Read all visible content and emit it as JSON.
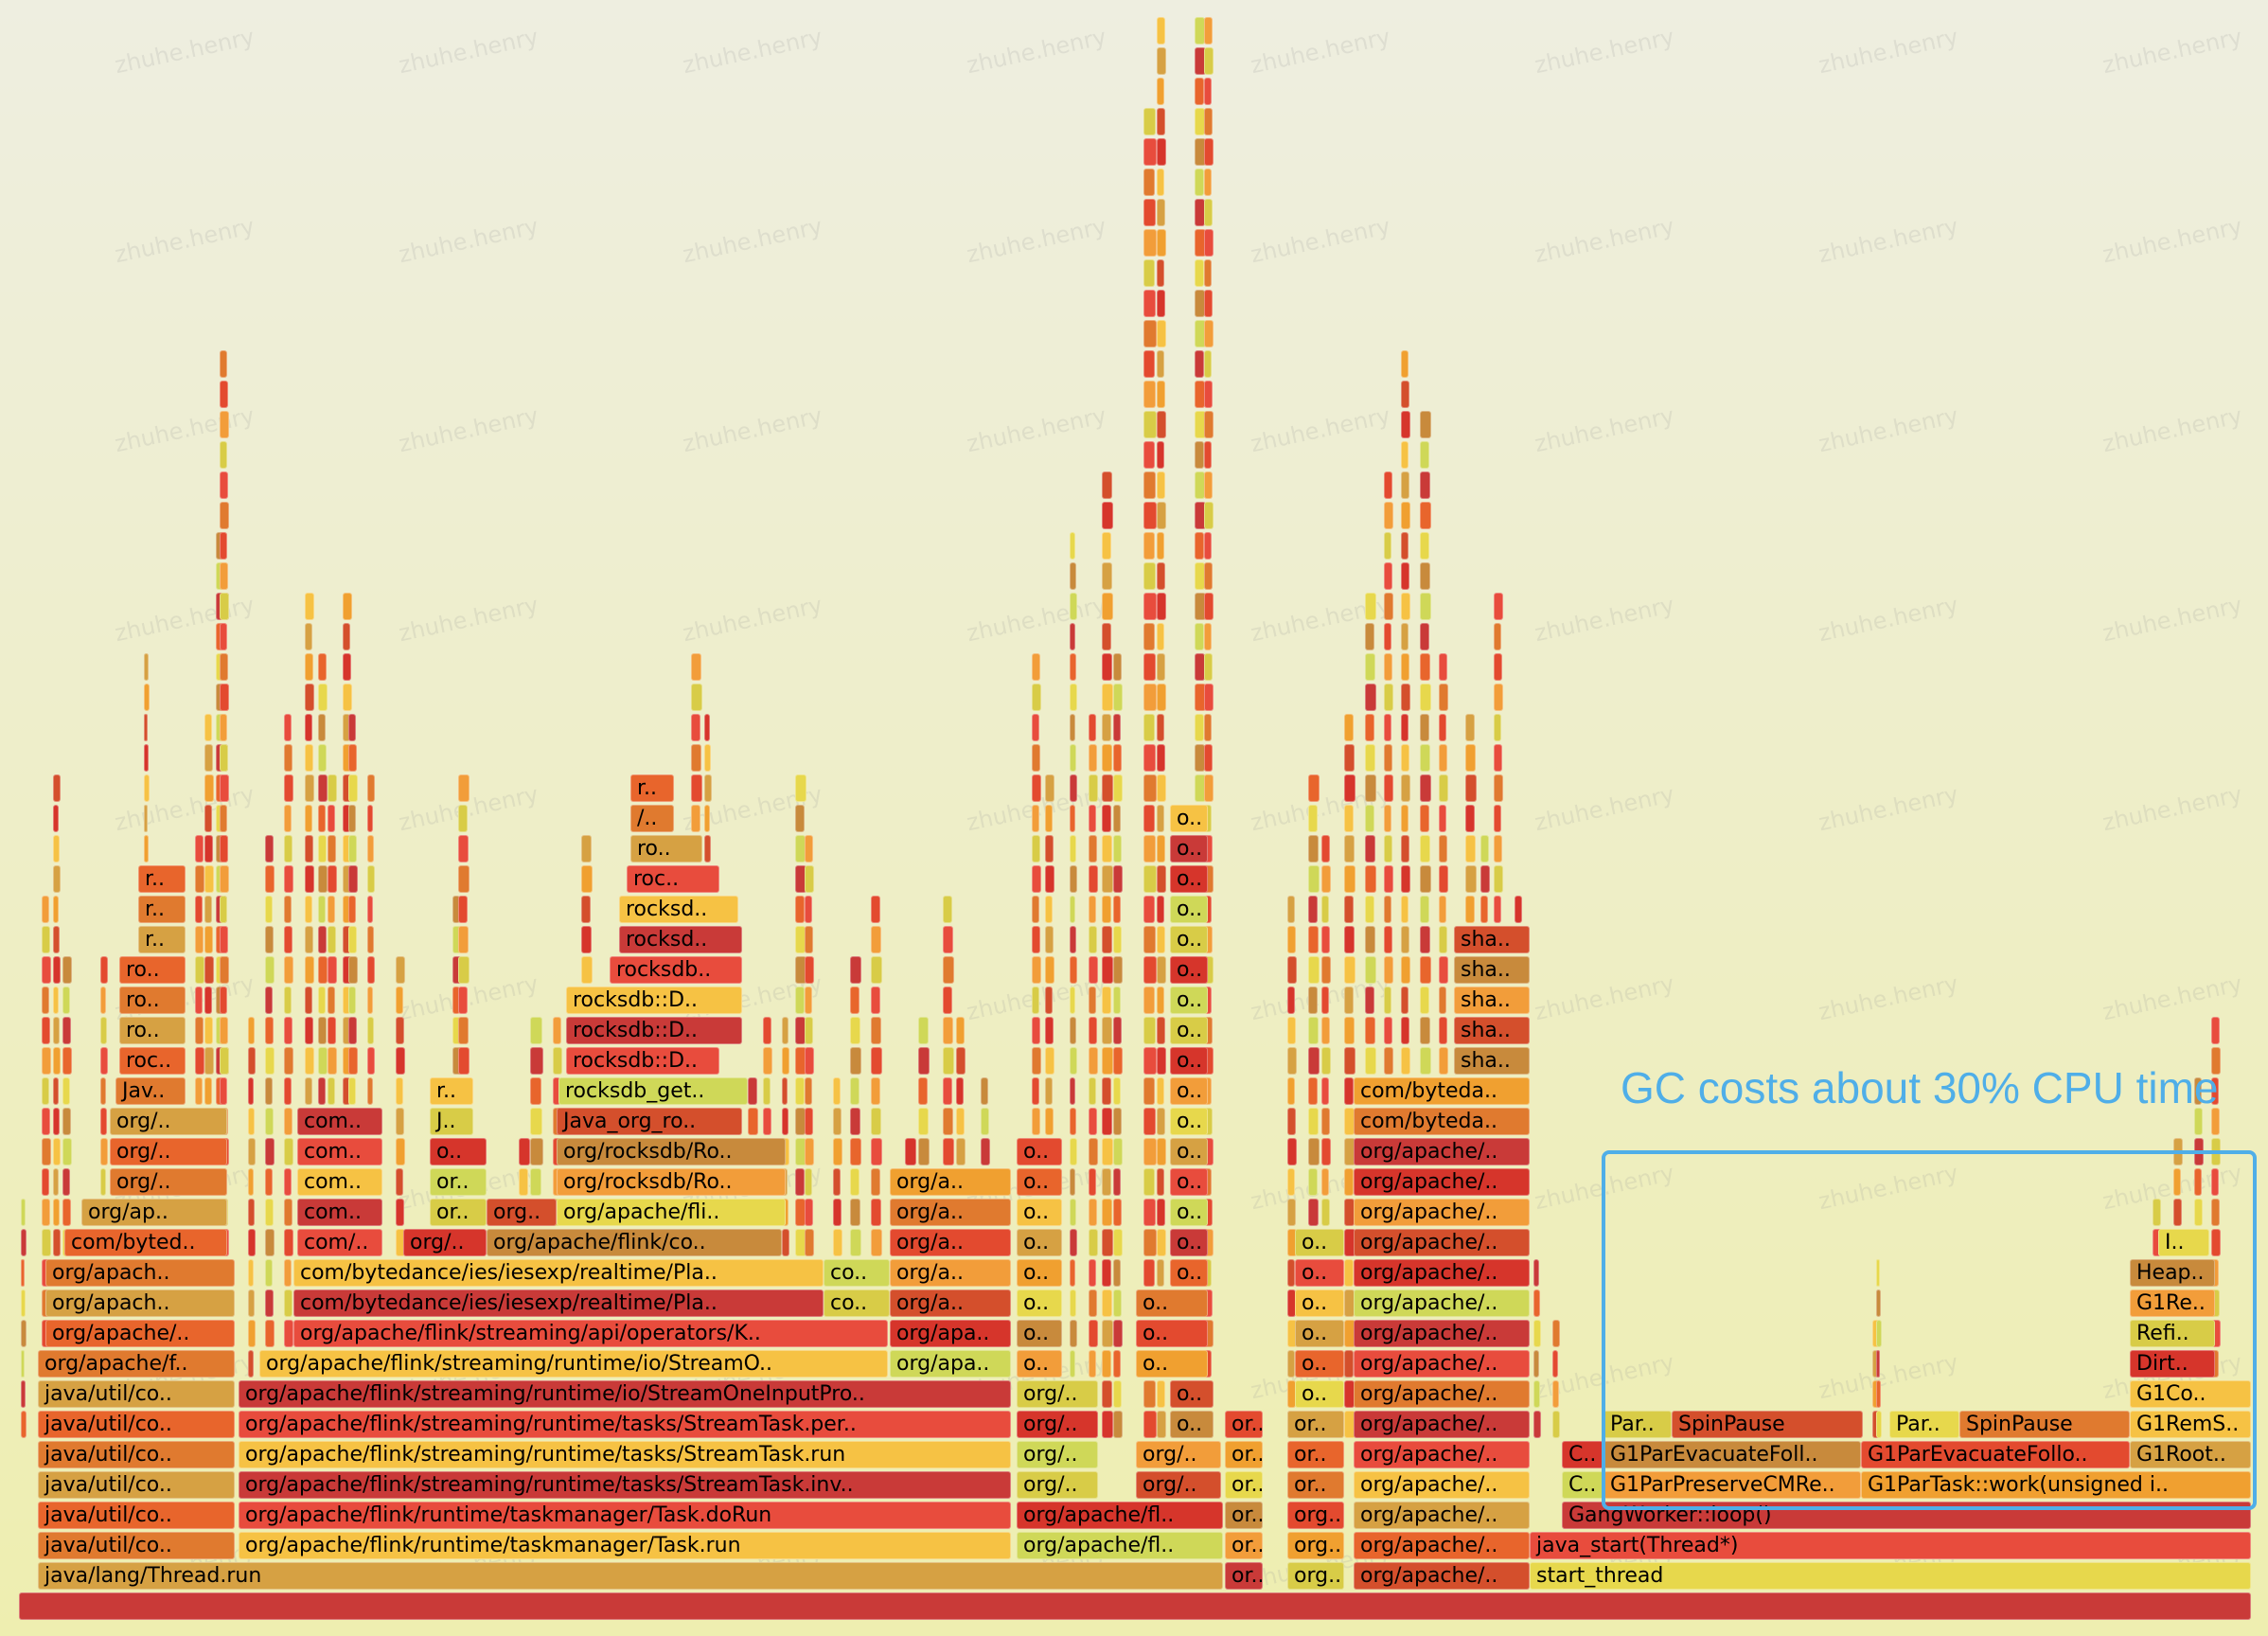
{
  "watermark_text": "zhuhe.henry",
  "annotation": {
    "text": "GC costs about 30% CPU time",
    "color": "#4faee8"
  },
  "palette": [
    "#c93a38",
    "#e34a2f",
    "#d6352b",
    "#e8652c",
    "#f29d3a",
    "#f6c244",
    "#e7d84c",
    "#d8cc47",
    "#d6a143",
    "#c88a3c",
    "#e84c3d",
    "#f0a030",
    "#cfd858",
    "#e07a2f",
    "#d44f2c"
  ],
  "levels": [
    [
      {
        "label": ""
      }
    ],
    [
      {
        "label": "java/lang/Thread.run"
      },
      {
        "label": "or.."
      },
      {
        "label": "org.."
      },
      {
        "label": "org/apache/.."
      },
      {
        "label": "start_thread"
      }
    ],
    [
      {
        "label": "java/util/co.."
      },
      {
        "label": "org/apache/flink/runtime/taskmanager/Task.run"
      },
      {
        "label": "org/apache/fl.."
      },
      {
        "label": "or.."
      },
      {
        "label": "org.."
      },
      {
        "label": "org/apache/.."
      },
      {
        "label": "java_start(Thread*)"
      }
    ],
    [
      {
        "label": "java/util/co.."
      },
      {
        "label": "org/apache/flink/runtime/taskmanager/Task.doRun"
      },
      {
        "label": "org/apache/fl.."
      },
      {
        "label": "or.."
      },
      {
        "label": "org.."
      },
      {
        "label": "org/apache/.."
      },
      {
        "label": "GangWorker::loop()"
      }
    ],
    [
      {
        "label": "java/util/co.."
      },
      {
        "label": "org/apache/flink/streaming/runtime/tasks/StreamTask.inv.."
      },
      {
        "label": "org/.."
      },
      {
        "label": "org/.."
      },
      {
        "label": "or.."
      },
      {
        "label": "or.."
      },
      {
        "label": "org/apache/.."
      },
      {
        "label": "C.."
      },
      {
        "label": "G1ParPreserveCMRe.."
      },
      {
        "label": "G1ParTask::work(unsigned i.."
      }
    ],
    [
      {
        "label": "java/util/co.."
      },
      {
        "label": "org/apache/flink/streaming/runtime/tasks/StreamTask.run"
      },
      {
        "label": "org/.."
      },
      {
        "label": "org/.."
      },
      {
        "label": "or.."
      },
      {
        "label": "or.."
      },
      {
        "label": "org/apache/.."
      },
      {
        "label": "C.."
      },
      {
        "label": "G1ParEvacuateFoll.."
      },
      {
        "label": "G1ParEvacuateFollo.."
      },
      {
        "label": "G1Root.."
      }
    ],
    [
      {
        "label": "java/util/co.."
      },
      {
        "label": "org/apache/flink/streaming/runtime/tasks/StreamTask.per.."
      },
      {
        "label": "org/.."
      },
      {
        "label": "o.."
      },
      {
        "label": "or.."
      },
      {
        "label": "or.."
      },
      {
        "label": "org/apache/.."
      },
      {
        "label": "Par.."
      },
      {
        "label": "SpinPause"
      },
      {
        "label": "Par.."
      },
      {
        "label": "SpinPause"
      },
      {
        "label": "G1RemS.."
      }
    ],
    [
      {
        "label": "java/util/co.."
      },
      {
        "label": "org/apache/flink/streaming/runtime/io/StreamOneInputPro.."
      },
      {
        "label": "org/.."
      },
      {
        "label": "o.."
      },
      {
        "label": "o.."
      },
      {
        "label": "org/apache/.."
      },
      {
        "label": "G1Co.."
      }
    ],
    [
      {
        "label": "org/apache/f.."
      },
      {
        "label": "org/apache/flink/streaming/runtime/io/StreamO.."
      },
      {
        "label": "org/apa.."
      },
      {
        "label": "o.."
      },
      {
        "label": "o.."
      },
      {
        "label": "o.."
      },
      {
        "label": "org/apache/.."
      },
      {
        "label": "Dirt.."
      }
    ],
    [
      {
        "label": "org/apache/.."
      },
      {
        "label": "org/apache/flink/streaming/api/operators/K.."
      },
      {
        "label": "org/apa.."
      },
      {
        "label": "o.."
      },
      {
        "label": "o.."
      },
      {
        "label": "o.."
      },
      {
        "label": "org/apache/.."
      },
      {
        "label": "Refi.."
      }
    ],
    [
      {
        "label": "org/apach.."
      },
      {
        "label": "com/bytedance/ies/iesexp/realtime/Pla.."
      },
      {
        "label": "co.."
      },
      {
        "label": "org/a.."
      },
      {
        "label": "o.."
      },
      {
        "label": "o.."
      },
      {
        "label": "o.."
      },
      {
        "label": "org/apache/.."
      },
      {
        "label": "G1Re.."
      }
    ],
    [
      {
        "label": "org/apach.."
      },
      {
        "label": "com/bytedance/ies/iesexp/realtime/Pla.."
      },
      {
        "label": "co.."
      },
      {
        "label": "org/a.."
      },
      {
        "label": "o.."
      },
      {
        "label": "o.."
      },
      {
        "label": "o.."
      },
      {
        "label": "org/apache/.."
      },
      {
        "label": "Heap.."
      }
    ],
    [
      {
        "label": "com/byted.."
      },
      {
        "label": "com/.."
      },
      {
        "label": "org/.."
      },
      {
        "label": "org/apache/flink/co.."
      },
      {
        "label": "org/a.."
      },
      {
        "label": "o.."
      },
      {
        "label": "o.."
      },
      {
        "label": "o.."
      },
      {
        "label": "org/apache/.."
      },
      {
        "label": "I.."
      }
    ],
    [
      {
        "label": "org/ap.."
      },
      {
        "label": "com.."
      },
      {
        "label": "or.."
      },
      {
        "label": "org.."
      },
      {
        "label": "org/apache/fli.."
      },
      {
        "label": "org/a.."
      },
      {
        "label": "o.."
      },
      {
        "label": "o.."
      },
      {
        "label": "org/apache/.."
      }
    ],
    [
      {
        "label": "org/.."
      },
      {
        "label": "com.."
      },
      {
        "label": "or.."
      },
      {
        "label": "org/rocksdb/Ro.."
      },
      {
        "label": "org/a.."
      },
      {
        "label": "o.."
      },
      {
        "label": "o.."
      },
      {
        "label": "org/apache/.."
      }
    ],
    [
      {
        "label": "org/.."
      },
      {
        "label": "com.."
      },
      {
        "label": "o.."
      },
      {
        "label": "org/rocksdb/Ro.."
      },
      {
        "label": "o.."
      },
      {
        "label": "o.."
      },
      {
        "label": "org/apache/.."
      }
    ],
    [
      {
        "label": "org/.."
      },
      {
        "label": "com.."
      },
      {
        "label": "J.."
      },
      {
        "label": "Java_org_ro.."
      },
      {
        "label": "o.."
      },
      {
        "label": "com/byteda.."
      }
    ],
    [
      {
        "label": "Jav.."
      },
      {
        "label": "r.."
      },
      {
        "label": "rocksdb_get.."
      },
      {
        "label": "o.."
      },
      {
        "label": "com/byteda.."
      }
    ],
    [
      {
        "label": "roc.."
      },
      {
        "label": "rocksdb::D.."
      },
      {
        "label": "o.."
      },
      {
        "label": "sha.."
      }
    ],
    [
      {
        "label": "ro.."
      },
      {
        "label": "rocksdb::D.."
      },
      {
        "label": "o.."
      },
      {
        "label": "sha.."
      }
    ],
    [
      {
        "label": "ro.."
      },
      {
        "label": "rocksdb::D.."
      },
      {
        "label": "o.."
      },
      {
        "label": "sha.."
      }
    ],
    [
      {
        "label": "ro.."
      },
      {
        "label": "rocksdb.."
      },
      {
        "label": "o.."
      },
      {
        "label": "sha.."
      }
    ],
    [
      {
        "label": "r.."
      },
      {
        "label": "rocksd.."
      },
      {
        "label": "o.."
      },
      {
        "label": "sha.."
      }
    ],
    [
      {
        "label": "r.."
      },
      {
        "label": "rocksd.."
      },
      {
        "label": "o.."
      }
    ],
    [
      {
        "label": "r.."
      },
      {
        "label": "roc.."
      },
      {
        "label": "o.."
      }
    ],
    [
      {
        "label": "ro.."
      },
      {
        "label": "o.."
      }
    ],
    [
      {
        "label": "/.."
      },
      {
        "label": "o.."
      }
    ],
    [
      {
        "label": "r.."
      }
    ]
  ]
}
